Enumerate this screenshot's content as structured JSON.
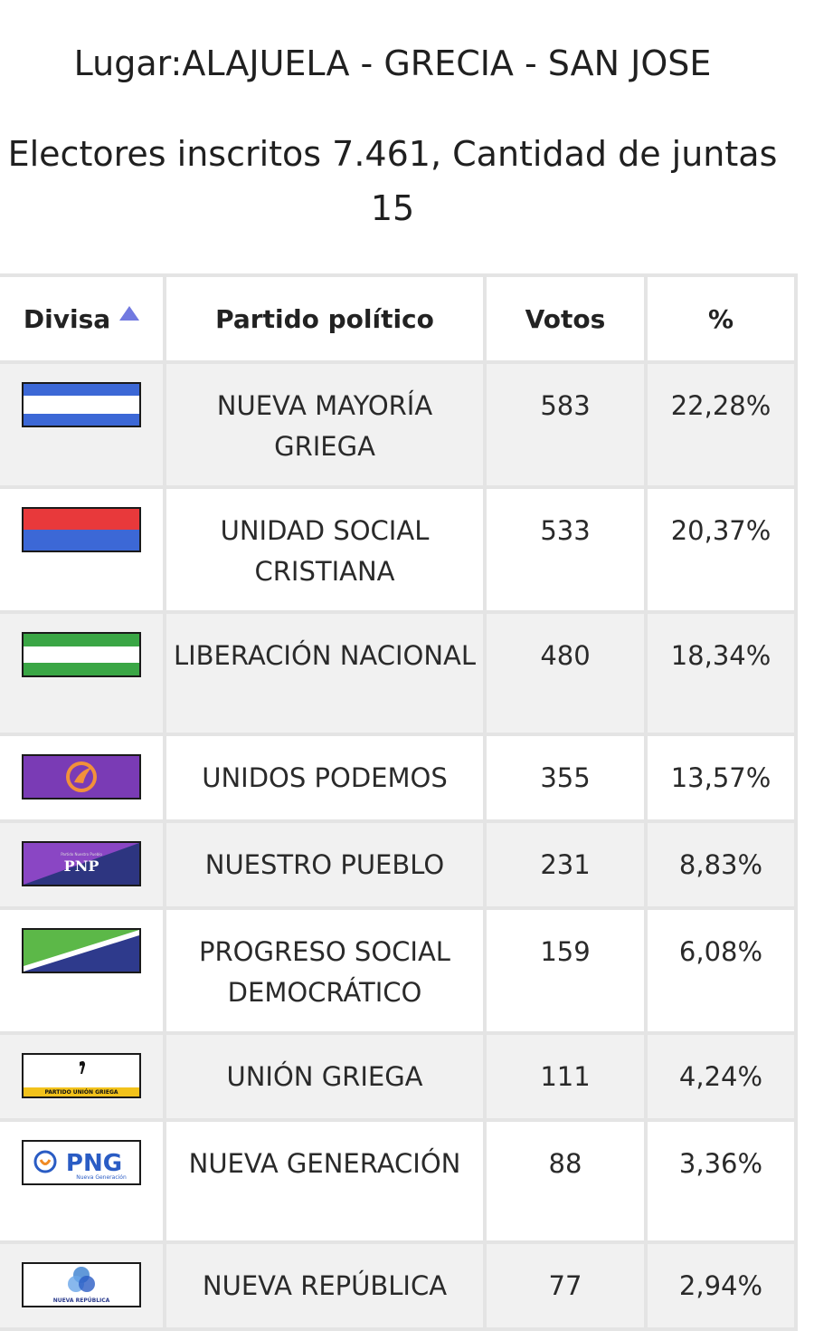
{
  "header": {
    "place": "Lugar:ALAJUELA - GRECIA - SAN JOSE",
    "electors": "Electores inscritos 7.461, Cantidad de juntas 15"
  },
  "table": {
    "columns": [
      "Divisa",
      "Partido político",
      "Votos",
      "%"
    ],
    "rows": [
      {
        "party": "NUEVA MAYORÍA GRIEGA",
        "votes": "583",
        "percent": "22,28%",
        "flag_icon": "flag-blue-white-blue"
      },
      {
        "party": "UNIDAD SOCIAL CRISTIANA",
        "votes": "533",
        "percent": "20,37%",
        "flag_icon": "flag-red-blue"
      },
      {
        "party": "LIBERACIÓN NACIONAL",
        "votes": "480",
        "percent": "18,34%",
        "flag_icon": "flag-green-white-green"
      },
      {
        "party": "UNIDOS PODEMOS",
        "votes": "355",
        "percent": "13,57%",
        "flag_icon": "flag-purple-emblem"
      },
      {
        "party": "NUESTRO PUEBLO",
        "votes": "231",
        "percent": "8,83%",
        "flag_icon": "flag-pnp",
        "flag_text": "PNP",
        "flag_subtext": "Partido Nuestro Pueblo"
      },
      {
        "party": "PROGRESO SOCIAL DEMOCRÁTICO",
        "votes": "159",
        "percent": "6,08%",
        "flag_icon": "flag-green-blue-diagonal"
      },
      {
        "party": "UNIÓN GRIEGA",
        "votes": "111",
        "percent": "4,24%",
        "flag_icon": "flag-union-griega",
        "flag_text": "PARTIDO UNIÓN GRIEGA"
      },
      {
        "party": "NUEVA GENERACIÓN",
        "votes": "88",
        "percent": "3,36%",
        "flag_icon": "flag-png",
        "flag_text": "PNG",
        "flag_subtext": "Nueva Generación"
      },
      {
        "party": "NUEVA REPÚBLICA",
        "votes": "77",
        "percent": "2,94%",
        "flag_icon": "flag-nueva-republica",
        "flag_text": "NUEVA REPÚBLICA"
      }
    ]
  },
  "colors": {
    "sort_arrow": "#7179e0",
    "row_shade": "#f1f1f1"
  }
}
